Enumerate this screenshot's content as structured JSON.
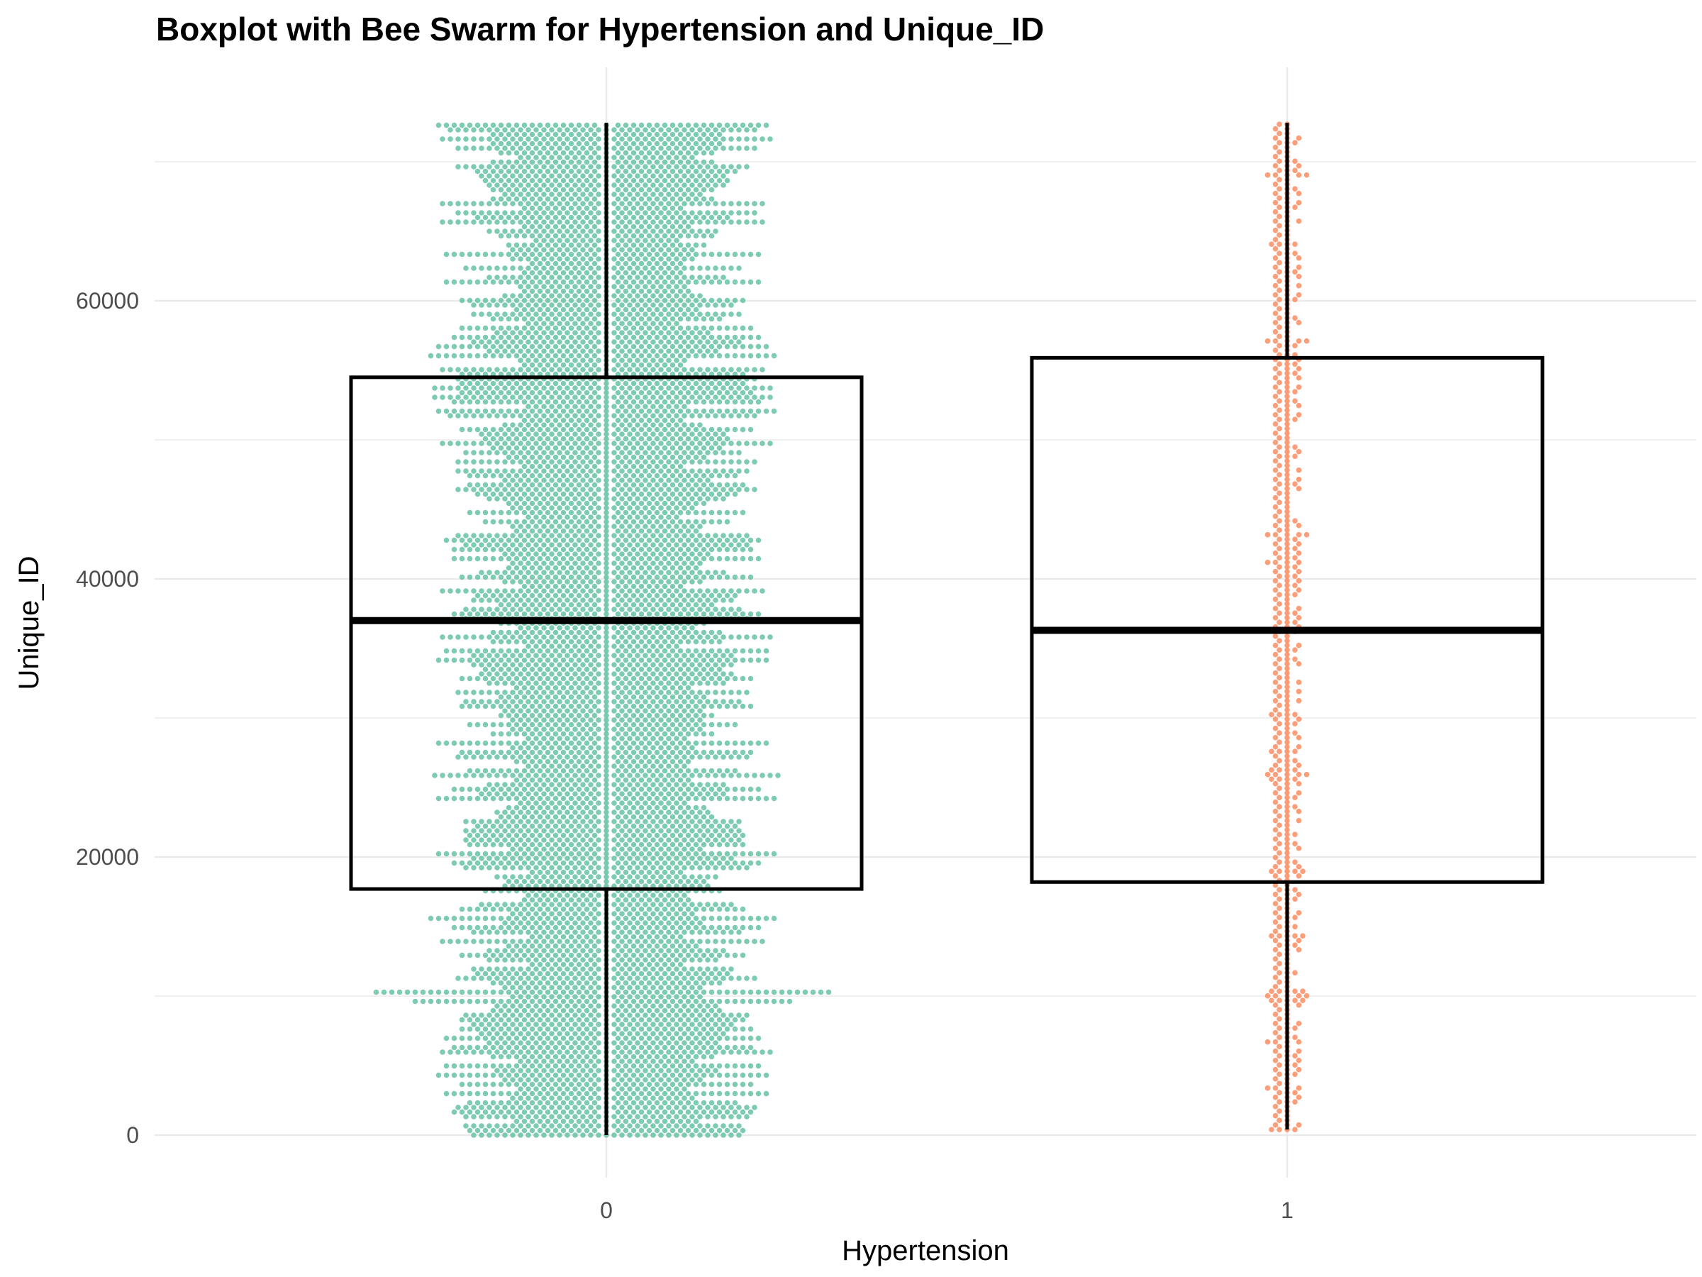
{
  "chart_data": {
    "type": "boxplot",
    "title": "Boxplot with Bee Swarm for Hypertension and Unique_ID",
    "xlabel": "Hypertension",
    "ylabel": "Unique_ID",
    "categories": [
      "0",
      "1"
    ],
    "yticks": [
      0,
      20000,
      40000,
      60000
    ],
    "ylim": [
      -3800,
      76500
    ],
    "grid": true,
    "legend": "none",
    "colors": {
      "0": "#66c2a5",
      "1": "#fc8d62",
      "box": "#000000",
      "grid": "#ebebeb"
    },
    "boxes": [
      {
        "category": "0",
        "min": 0,
        "q1": 17700,
        "median": 37000,
        "q3": 54500,
        "max": 72800,
        "n_points": 6900
      },
      {
        "category": "1",
        "min": 400,
        "q1": 18200,
        "median": 36300,
        "q3": 55900,
        "max": 72800,
        "n_points": 560
      }
    ]
  }
}
